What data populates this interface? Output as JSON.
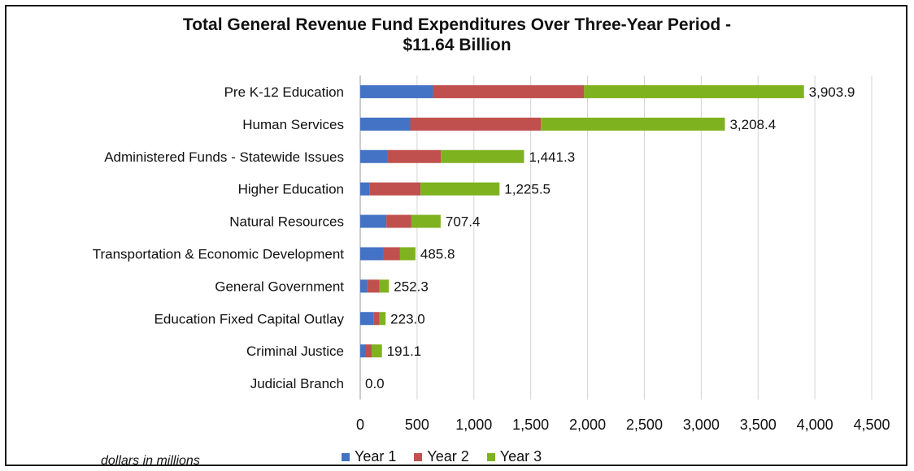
{
  "chart_data": {
    "type": "bar",
    "orientation": "horizontal",
    "stacked": true,
    "title": [
      "Total General Revenue Fund Expenditures Over Three-Year Period -",
      "$11.64 Billion"
    ],
    "note": "dollars in millions",
    "categories": [
      "Pre K-12 Education",
      "Human Services",
      "Administered Funds - Statewide Issues",
      "Higher Education",
      "Natural Resources",
      "Transportation & Economic Development",
      "General Government",
      "Education Fixed Capital Outlay",
      "Criminal Justice",
      "Judicial Branch"
    ],
    "series": [
      {
        "name": "Year 1",
        "color": "#4472c4",
        "values": [
          640,
          440,
          240,
          80,
          230,
          200,
          60,
          120,
          50,
          0
        ]
      },
      {
        "name": "Year 2",
        "color": "#c0504d",
        "values": [
          1330,
          1150,
          470,
          450,
          220,
          150,
          110,
          50,
          50,
          0
        ]
      },
      {
        "name": "Year 3",
        "color": "#7fb21f",
        "values": [
          1933.9,
          1618.4,
          731.3,
          695.5,
          257.4,
          135.8,
          82.3,
          53.0,
          91.1,
          0
        ]
      }
    ],
    "totals": [
      "3,903.9",
      "3,208.4",
      "1,441.3",
      "1,225.5",
      "707.4",
      "485.8",
      "252.3",
      "223.0",
      "191.1",
      "0.0"
    ],
    "xlim": [
      0,
      4500
    ],
    "x_ticks": [
      "0",
      "500",
      "1,000",
      "1,500",
      "2,000",
      "2,500",
      "3,000",
      "3,500",
      "4,000",
      "4,500"
    ],
    "grid": true,
    "legend_position": "bottom"
  }
}
